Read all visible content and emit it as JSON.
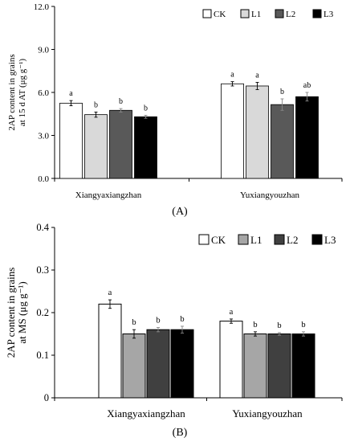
{
  "chart_data": [
    {
      "type": "bar",
      "panel_label": "(A)",
      "ylabel_lines": [
        "2AP content in grains",
        "at 15 d AT (μg g⁻¹)"
      ],
      "ylim": [
        0,
        12
      ],
      "yticks": [
        "0.0",
        "3.0",
        "6.0",
        "9.0",
        "12.0"
      ],
      "grid": false,
      "legend_position": "top-right",
      "categories": [
        "Xiangyaxiangzhan",
        "Yuxiangyouzhan"
      ],
      "series": [
        {
          "name": "CK",
          "color": "#ffffff",
          "values": [
            5.25,
            6.6
          ],
          "errors": [
            0.18,
            0.15
          ],
          "labels": [
            "a",
            "a"
          ]
        },
        {
          "name": "L1",
          "color": "#d9d9d9",
          "values": [
            4.45,
            6.45
          ],
          "errors": [
            0.18,
            0.25
          ],
          "labels": [
            "b",
            "a"
          ]
        },
        {
          "name": "L2",
          "color": "#595959",
          "values": [
            4.75,
            5.15
          ],
          "errors": [
            0.12,
            0.4
          ],
          "labels": [
            "b",
            "b"
          ]
        },
        {
          "name": "L3",
          "color": "#000000",
          "values": [
            4.3,
            5.7
          ],
          "errors": [
            0.1,
            0.3
          ],
          "labels": [
            "b",
            "ab"
          ]
        }
      ]
    },
    {
      "type": "bar",
      "panel_label": "(B)",
      "ylabel_lines": [
        "2AP content in grains",
        "at MS (μg g⁻¹)"
      ],
      "ylim": [
        0,
        0.4
      ],
      "yticks": [
        "0",
        "0.1",
        "0.2",
        "0.3",
        "0.4"
      ],
      "grid": false,
      "legend_position": "top-right",
      "categories": [
        "Xiangyaxiangzhan",
        "Yuxiangyouzhan"
      ],
      "series": [
        {
          "name": "CK",
          "color": "#ffffff",
          "values": [
            0.22,
            0.18
          ],
          "errors": [
            0.01,
            0.005
          ],
          "labels": [
            "a",
            "a"
          ]
        },
        {
          "name": "L1",
          "color": "#a6a6a6",
          "values": [
            0.15,
            0.15
          ],
          "errors": [
            0.01,
            0.005
          ],
          "labels": [
            "b",
            "b"
          ]
        },
        {
          "name": "L2",
          "color": "#404040",
          "values": [
            0.16,
            0.15
          ],
          "errors": [
            0.005,
            0.003
          ],
          "labels": [
            "b",
            "b"
          ]
        },
        {
          "name": "L3",
          "color": "#000000",
          "values": [
            0.16,
            0.15
          ],
          "errors": [
            0.008,
            0.005
          ],
          "labels": [
            "b",
            "b"
          ]
        }
      ]
    }
  ]
}
